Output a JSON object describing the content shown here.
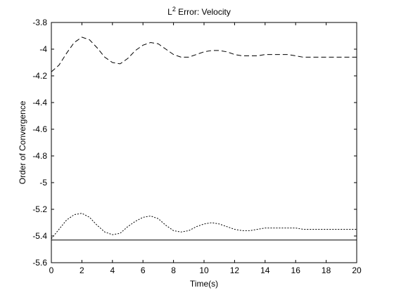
{
  "chart_data": {
    "type": "line",
    "title": {
      "base": "L",
      "sup": "2",
      "rest": " Error: Velocity"
    },
    "xlabel": "Time(s)",
    "ylabel": "Order of Convergence",
    "xlim": [
      0,
      20
    ],
    "ylim": [
      -5.6,
      -3.8
    ],
    "xticks": [
      0,
      2,
      4,
      6,
      8,
      10,
      12,
      14,
      16,
      18,
      20
    ],
    "yticks": [
      -3.8,
      -4,
      -4.2,
      -4.4,
      -4.6,
      -4.8,
      -5,
      -5.2,
      -5.4,
      -5.6
    ],
    "xtick_labels": [
      "0",
      "2",
      "4",
      "6",
      "8",
      "10",
      "12",
      "14",
      "16",
      "18",
      "20"
    ],
    "ytick_labels": [
      "-3.8",
      "-4",
      "-4.2",
      "-4.4",
      "-4.6",
      "-4.8",
      "-5",
      "-5.2",
      "-5.4",
      "-5.6"
    ],
    "grid": false,
    "series": [
      {
        "style": "dashed",
        "x": [
          0,
          0.5,
          1,
          1.5,
          2,
          2.5,
          3,
          3.5,
          4,
          4.5,
          5,
          5.5,
          6,
          6.5,
          7,
          7.5,
          8,
          8.5,
          9,
          9.5,
          10,
          10.5,
          11,
          11.5,
          12,
          12.5,
          13,
          13.5,
          14,
          14.5,
          15,
          15.5,
          16,
          16.5,
          17,
          17.5,
          18,
          18.5,
          19,
          19.5,
          20
        ],
        "y": [
          -4.17,
          -4.12,
          -4.03,
          -3.95,
          -3.91,
          -3.93,
          -3.99,
          -4.06,
          -4.1,
          -4.11,
          -4.07,
          -4.01,
          -3.97,
          -3.95,
          -3.96,
          -4.0,
          -4.04,
          -4.06,
          -4.06,
          -4.04,
          -4.02,
          -4.01,
          -4.01,
          -4.02,
          -4.04,
          -4.05,
          -4.05,
          -4.05,
          -4.04,
          -4.04,
          -4.04,
          -4.04,
          -4.05,
          -4.06,
          -4.06,
          -4.06,
          -4.06,
          -4.06,
          -4.06,
          -4.06,
          -4.06
        ]
      },
      {
        "style": "dotted",
        "x": [
          0,
          0.5,
          1,
          1.5,
          2,
          2.5,
          3,
          3.5,
          4,
          4.5,
          5,
          5.5,
          6,
          6.5,
          7,
          7.5,
          8,
          8.5,
          9,
          9.5,
          10,
          10.5,
          11,
          11.5,
          12,
          12.5,
          13,
          13.5,
          14,
          14.5,
          15,
          15.5,
          16,
          16.5,
          17,
          17.5,
          18,
          18.5,
          19,
          19.5,
          20
        ],
        "y": [
          -5.42,
          -5.35,
          -5.28,
          -5.24,
          -5.23,
          -5.26,
          -5.32,
          -5.37,
          -5.39,
          -5.38,
          -5.33,
          -5.29,
          -5.26,
          -5.25,
          -5.27,
          -5.32,
          -5.36,
          -5.37,
          -5.36,
          -5.33,
          -5.31,
          -5.3,
          -5.31,
          -5.33,
          -5.35,
          -5.36,
          -5.36,
          -5.35,
          -5.34,
          -5.34,
          -5.34,
          -5.34,
          -5.34,
          -5.35,
          -5.35,
          -5.35,
          -5.35,
          -5.35,
          -5.35,
          -5.35,
          -5.35
        ]
      },
      {
        "style": "solid",
        "x": [
          0,
          20
        ],
        "y": [
          -5.43,
          -5.43
        ]
      }
    ]
  }
}
